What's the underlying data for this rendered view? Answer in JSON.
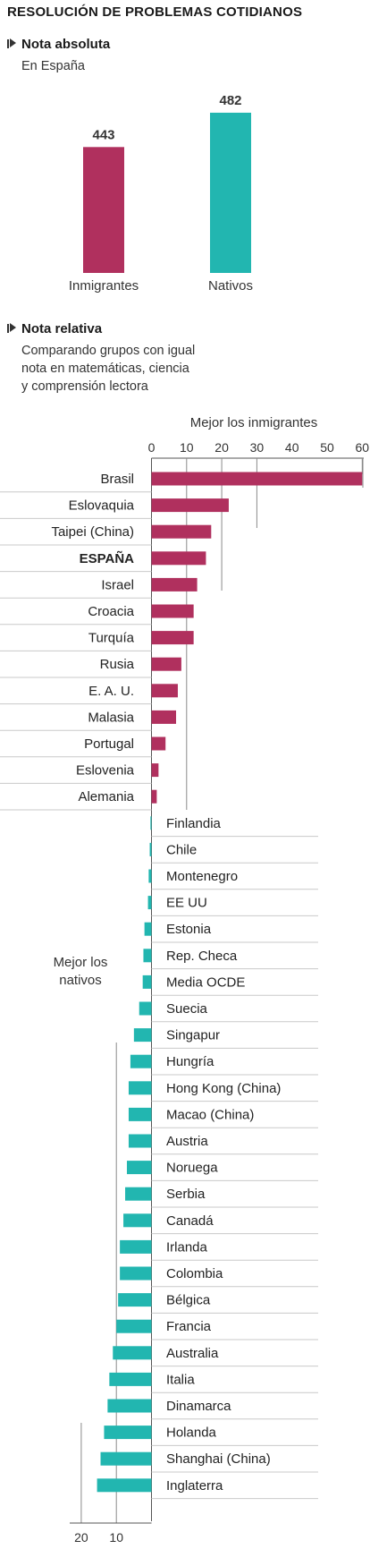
{
  "title": "RESOLUCIÓN DE PROBLEMAS COTIDIANOS",
  "section1": {
    "heading": "Nota absoluta",
    "subtitle": "En España"
  },
  "section2": {
    "heading": "Nota relativa",
    "subtitle_lines": [
      "Comparando grupos con igual",
      "nota en matemáticas, ciencia",
      "y comprensión lectora"
    ]
  },
  "colors": {
    "immigrants": "#b0305e",
    "natives": "#22b6b0",
    "axis": "#555555",
    "rule": "#8a8a8a"
  },
  "chart_data": [
    {
      "type": "bar",
      "title": "Nota absoluta",
      "subtitle": "En España",
      "categories": [
        "Inmigrantes",
        "Nativos"
      ],
      "values": [
        443,
        482
      ],
      "value_labels": [
        "443",
        "482"
      ]
    },
    {
      "type": "bar",
      "title": "Nota relativa",
      "subtitle": "Comparando grupos con igual nota en matemáticas, ciencia y comprensión lectora",
      "top_axis_label": "Mejor los inmigrantes",
      "top_ticks": [
        "0",
        "10",
        "20",
        "30",
        "40",
        "50",
        "60"
      ],
      "bottom_axis_label": "Mejor los nativos",
      "bottom_ticks": [
        "20",
        "10"
      ],
      "xlim": [
        -22,
        62
      ],
      "categories": [
        "Brasil",
        "Eslovaquia",
        "Taipei (China)",
        "ESPAÑA",
        "Israel",
        "Croacia",
        "Turquía",
        "Rusia",
        "E. A. U.",
        "Malasia",
        "Portugal",
        "Eslovenia",
        "Alemania",
        "Finlandia",
        "Chile",
        "Montenegro",
        "EE UU",
        "Estonia",
        "Rep. Checa",
        "Media OCDE",
        "Suecia",
        "Singapur",
        "Hungría",
        "Hong Kong (China)",
        "Macao (China)",
        "Austria",
        "Noruega",
        "Serbia",
        "Canadá",
        "Irlanda",
        "Colombia",
        "Bélgica",
        "Francia",
        "Australia",
        "Italia",
        "Dinamarca",
        "Holanda",
        "Shanghai (China)",
        "Inglaterra"
      ],
      "highlight": "ESPAÑA",
      "values": [
        60,
        22,
        17,
        15.5,
        13,
        12,
        12,
        8.5,
        7.5,
        7,
        4,
        2,
        1.5,
        -0.3,
        -0.5,
        -0.8,
        -1,
        -2,
        -2.3,
        -2.5,
        -3.5,
        -5,
        -6,
        -6.5,
        -6.5,
        -6.5,
        -7,
        -7.5,
        -8,
        -9,
        -9,
        -9.5,
        -10,
        -11,
        -12,
        -12.5,
        -13.5,
        -14.5,
        -15.5
      ]
    }
  ]
}
